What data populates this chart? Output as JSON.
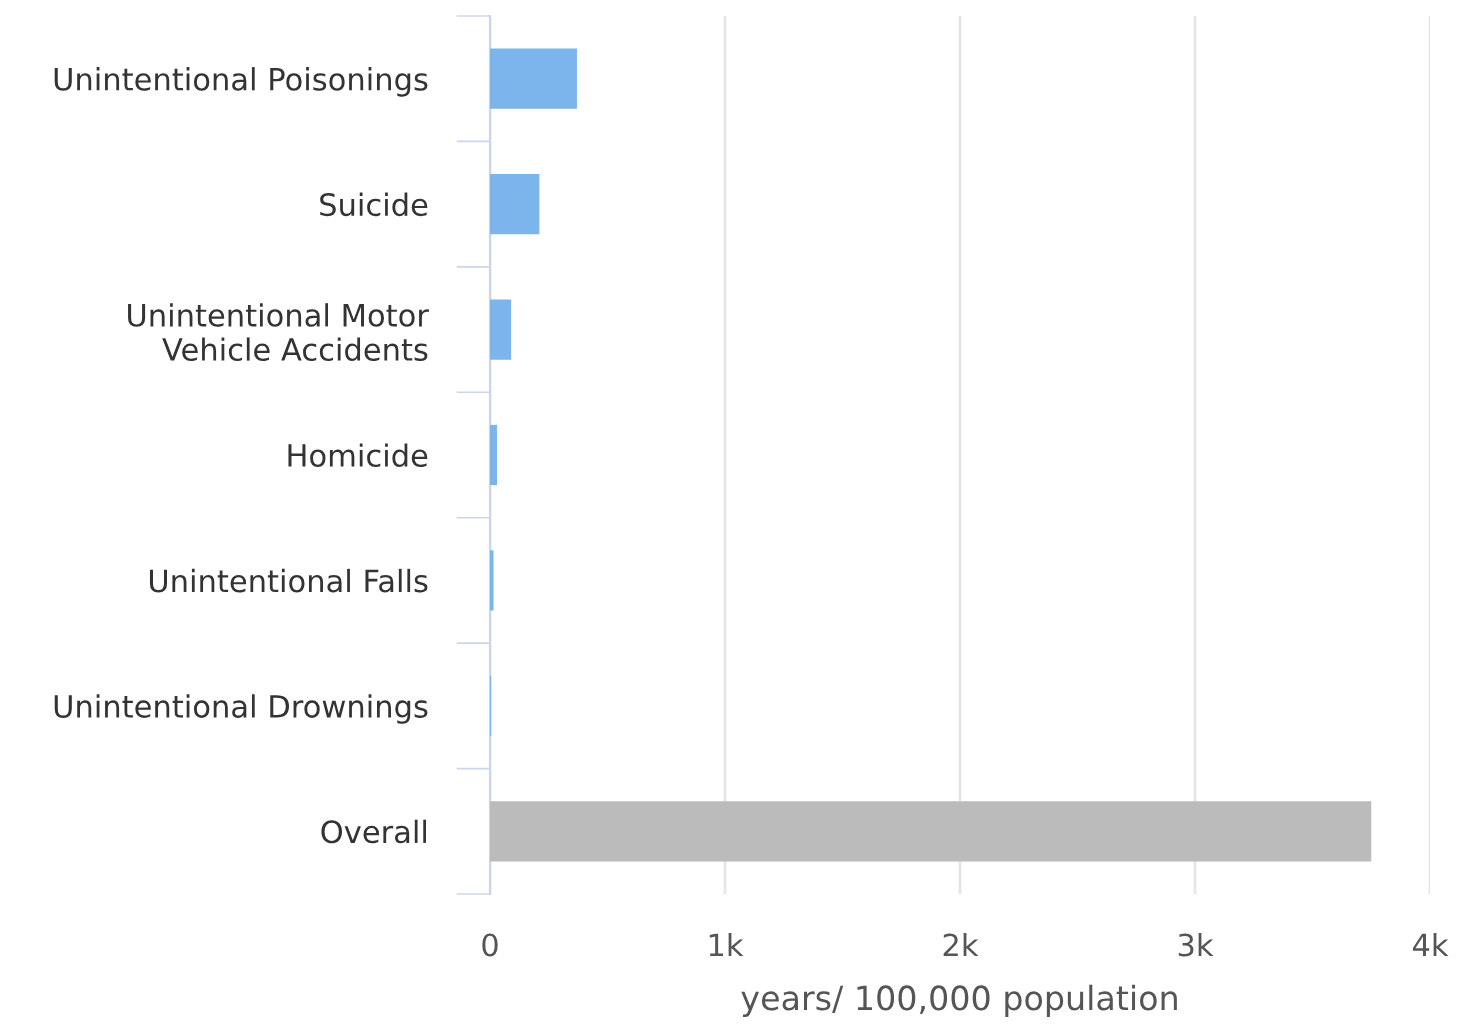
{
  "chart_data": {
    "type": "bar",
    "orientation": "horizontal",
    "xlabel": "years/ 100,000 population",
    "categories": [
      "Unintentional Poisonings",
      "Suicide",
      "Unintentional Motor\nVehicle Accidents",
      "Homicide",
      "Unintentional Falls",
      "Unintentional Drownings",
      "Overall"
    ],
    "values": [
      370,
      210,
      90,
      30,
      15,
      5,
      3750
    ],
    "colors": [
      "#7cb5ec",
      "#7cb5ec",
      "#7cb5ec",
      "#7cb5ec",
      "#7cb5ec",
      "#7cb5ec",
      "#bbbbbb"
    ],
    "xlim": [
      0,
      4000
    ],
    "xticks": [
      {
        "value": 0,
        "label": "0"
      },
      {
        "value": 1000,
        "label": "1k"
      },
      {
        "value": 2000,
        "label": "2k"
      },
      {
        "value": 3000,
        "label": "3k"
      },
      {
        "value": 4000,
        "label": "4k"
      }
    ],
    "grid": "x",
    "legend": false
  }
}
